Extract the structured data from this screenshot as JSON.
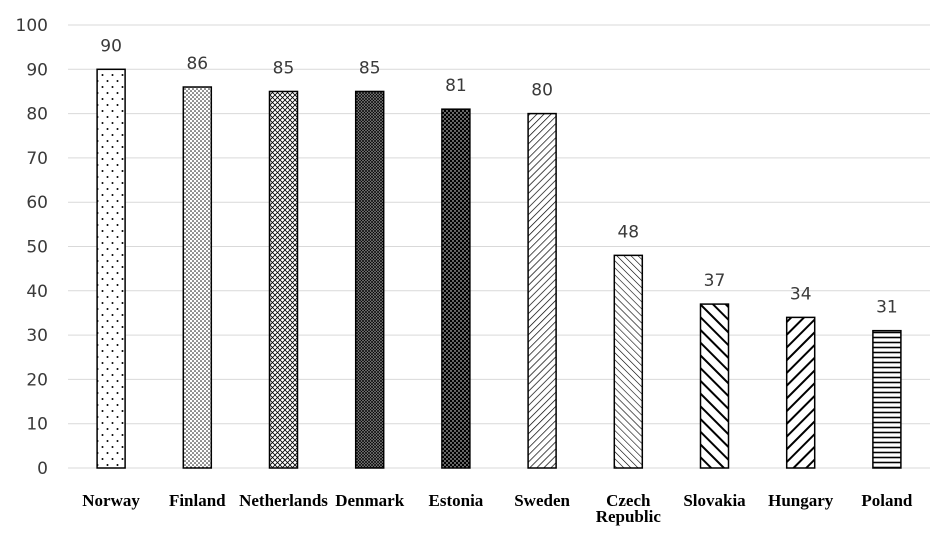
{
  "chart_data": {
    "type": "bar",
    "categories": [
      "Norway",
      "Finland",
      "Netherlands",
      "Denmark",
      "Estonia",
      "Sweden",
      "Czech Republic",
      "Slovakia",
      "Hungary",
      "Poland"
    ],
    "category_lines": [
      [
        "Norway"
      ],
      [
        "Finland"
      ],
      [
        "Netherlands"
      ],
      [
        "Denmark"
      ],
      [
        "Estonia"
      ],
      [
        "Sweden"
      ],
      [
        "Czech",
        "Republic"
      ],
      [
        "Slovakia"
      ],
      [
        "Hungary"
      ],
      [
        "Poland"
      ]
    ],
    "values": [
      90,
      86,
      85,
      85,
      81,
      80,
      48,
      37,
      34,
      31
    ],
    "patterns": [
      "sparse-dots",
      "dense-dots",
      "crosshatch-light",
      "crosshatch-dense",
      "dark-dots",
      "diagonal-down-fine",
      "diagonal-up-fine",
      "diagonal-down-thick",
      "diagonal-up-thick",
      "horizontal-stripes"
    ],
    "title": "",
    "xlabel": "",
    "ylabel": "",
    "ylim": [
      0,
      100
    ],
    "yticks": [
      0,
      10,
      20,
      30,
      40,
      50,
      60,
      70,
      80,
      90,
      100
    ],
    "grid": true,
    "legend": "none",
    "data_labels": true,
    "colors": {
      "grid": "#d9d9d9",
      "bar_fill": "#ffffff",
      "bar_stroke": "#000000",
      "text": "#3a3a3a"
    }
  }
}
